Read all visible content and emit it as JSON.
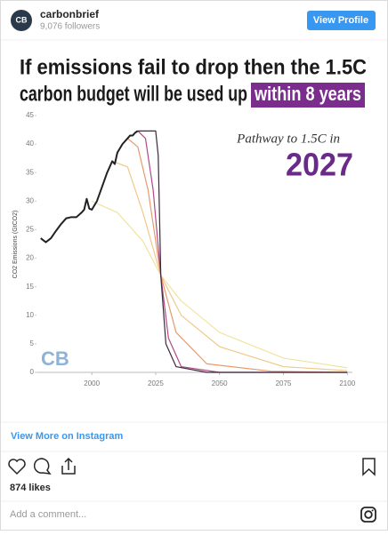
{
  "header": {
    "avatar": "CB",
    "account": "carbonbrief",
    "followers": "9,076 followers",
    "button": "View Profile"
  },
  "post": {
    "title_lines": [
      "If emissions fail to drop then the 1.5C",
      "carbon budget will be used up"
    ],
    "title_highlight": "within 8 years",
    "logo": "CB"
  },
  "chart_data": {
    "type": "line",
    "ylabel": "CO2 Emissions (GtCO2)",
    "annotation": "Pathway to 1.5C in",
    "annotation_year": "2027",
    "xlim": [
      1978,
      2102
    ],
    "ylim": [
      0,
      45
    ],
    "xticks": [
      2000,
      2025,
      2050,
      2075,
      2100
    ],
    "yticks": [
      0,
      5,
      10,
      15,
      20,
      25,
      30,
      35,
      40,
      45
    ],
    "series": [
      {
        "color": "#f0e4a0",
        "x": [
          2000,
          2010,
          2020,
          2027,
          2035,
          2050,
          2075,
          2100
        ],
        "values": [
          30,
          28,
          23,
          17,
          12.5,
          7,
          2.5,
          0.8
        ]
      },
      {
        "color": "#f0c98a",
        "x": [
          2008,
          2014,
          2020,
          2027,
          2035,
          2050,
          2075,
          2100
        ],
        "values": [
          37,
          36,
          28,
          17,
          10,
          4.5,
          1,
          0.3
        ]
      },
      {
        "color": "#e89a6a",
        "x": [
          2014,
          2018,
          2022,
          2027,
          2033,
          2045,
          2070,
          2100
        ],
        "values": [
          41,
          39.5,
          32,
          17,
          7,
          1.5,
          0.2,
          0
        ]
      },
      {
        "color": "#b04a86",
        "x": [
          2018,
          2021,
          2024,
          2027,
          2030,
          2035,
          2050,
          2100
        ],
        "values": [
          42.3,
          41,
          32,
          17,
          6,
          1,
          0,
          0
        ]
      },
      {
        "color": "#3a2a3a",
        "x": [
          2018,
          2025,
          2026,
          2027,
          2029,
          2033,
          2045,
          2100
        ],
        "values": [
          42.3,
          42.3,
          38,
          17,
          5,
          1,
          0,
          0
        ]
      },
      {
        "color": "#222222",
        "width": 2,
        "x": [
          1980,
          1982,
          1984,
          1986,
          1988,
          1990,
          1992,
          1994,
          1996,
          1997,
          1998,
          1999,
          2000,
          2002,
          2004,
          2006,
          2008,
          2009,
          2010,
          2012,
          2014,
          2015,
          2016,
          2017,
          2018
        ],
        "values": [
          23.5,
          22.8,
          23.5,
          24.8,
          26,
          27,
          27.2,
          27.2,
          28,
          28.5,
          30.4,
          28.7,
          28.5,
          30,
          32.5,
          35,
          37,
          36.5,
          38.5,
          40,
          41,
          41.5,
          41.5,
          42,
          42.3
        ]
      }
    ]
  },
  "footer": {
    "link": "View More on Instagram",
    "likes": "874 likes",
    "comment": "Add a comment..."
  }
}
